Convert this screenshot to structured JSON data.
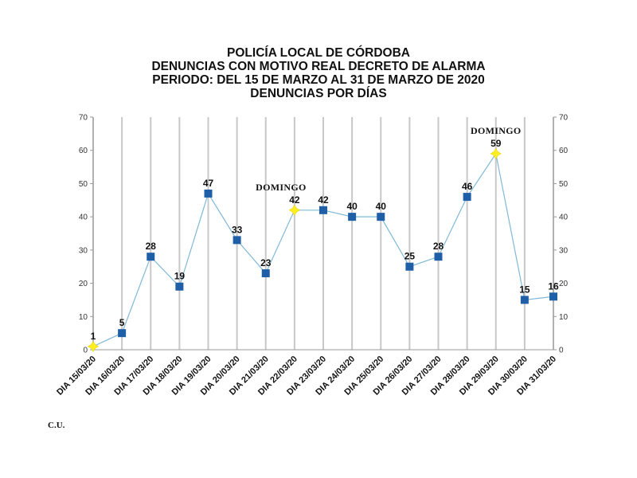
{
  "page": {
    "footer_text": "C.U."
  },
  "chart_data": {
    "type": "line",
    "title": "POLICÍA LOCAL DE CÓRDOBA",
    "subtitle": [
      "DENUNCIAS CON MOTIVO REAL DECRETO DE ALARMA",
      "PERIODO: DEL 15 DE MARZO AL 31 DE MARZO DE 2020",
      "DENUNCIAS POR DÍAS"
    ],
    "xlabel": "",
    "ylabel": "",
    "ylim": [
      0,
      70
    ],
    "yticks": [
      0,
      10,
      20,
      30,
      40,
      50,
      60,
      70
    ],
    "secondary_y_axis": true,
    "grid": "vertical",
    "categories": [
      "DIA 15/03/20",
      "DIA 16/03/20",
      "DIA 17/03/20",
      "DIA 18/03/20",
      "DIA 19/03/20",
      "DIA 20/03/20",
      "DIA 21/03/20",
      "DIA 22/03/20",
      "DIA 23/03/20",
      "DIA 24/03/20",
      "DIA 25/03/20",
      "DIA 26/03/20",
      "DIA 27/03/20",
      "DIA 28/03/20",
      "DIA 29/03/20",
      "DIA 30/03/20",
      "DIA 31/03/20"
    ],
    "values": [
      1,
      5,
      28,
      19,
      47,
      33,
      23,
      42,
      42,
      40,
      40,
      25,
      28,
      46,
      59,
      15,
      16
    ],
    "highlighted_indices": [
      0,
      7,
      14
    ],
    "annotations": [
      {
        "category_index": 7,
        "text": "DOMINGO"
      },
      {
        "category_index": 14,
        "text": "DOMINGO"
      }
    ],
    "colors": {
      "line": "#7fb8d8",
      "marker": "#1f5fa8",
      "highlight_marker": "#ffee22",
      "grid": "#c8c8c8",
      "axis": "#9a9a9a"
    }
  }
}
